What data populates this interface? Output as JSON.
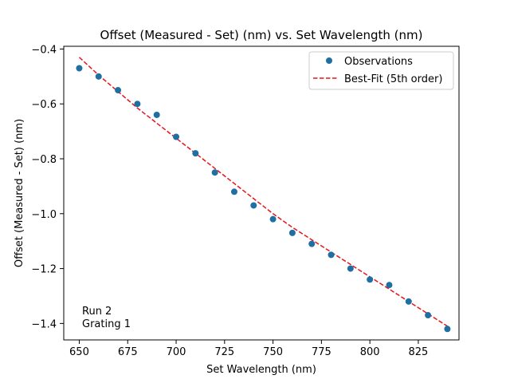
{
  "chart_data": {
    "type": "scatter",
    "title": "Offset (Measured - Set) (nm) vs. Set Wavelength (nm)",
    "xlabel": "Set Wavelength (nm)",
    "ylabel": "Offset (Measured - Set) (nm)",
    "xlim": [
      642,
      846
    ],
    "ylim": [
      -1.46,
      -0.39
    ],
    "grid": false,
    "legend_placement": "top-right",
    "x_ticks": [
      650,
      675,
      700,
      725,
      750,
      775,
      800,
      825
    ],
    "x_tick_labels": [
      "650",
      "675",
      "700",
      "725",
      "750",
      "775",
      "800",
      "825"
    ],
    "y_ticks": [
      -0.4,
      -0.6,
      -0.8,
      -1.0,
      -1.2,
      -1.4
    ],
    "y_tick_labels": [
      "−0.4",
      "−0.6",
      "−0.8",
      "−1.0",
      "−1.2",
      "−1.4"
    ],
    "series": [
      {
        "name": "Observations",
        "style": "markers",
        "color": "#1f6fa3",
        "x": [
          650,
          660,
          670,
          680,
          690,
          700,
          710,
          720,
          730,
          740,
          750,
          760,
          770,
          780,
          790,
          800,
          810,
          820,
          830,
          840
        ],
        "y": [
          -0.47,
          -0.5,
          -0.55,
          -0.6,
          -0.64,
          -0.72,
          -0.78,
          -0.85,
          -0.92,
          -0.97,
          -1.02,
          -1.07,
          -1.11,
          -1.15,
          -1.2,
          -1.24,
          -1.26,
          -1.32,
          -1.37,
          -1.42
        ]
      },
      {
        "name": "Best-Fit (5th order)",
        "style": "dashed-line",
        "color": "#e8141c",
        "x": [
          650,
          660,
          670,
          680,
          690,
          700,
          710,
          720,
          730,
          740,
          750,
          760,
          770,
          780,
          790,
          800,
          810,
          820,
          830,
          840
        ],
        "y": [
          -0.43,
          -0.495,
          -0.555,
          -0.615,
          -0.67,
          -0.725,
          -0.78,
          -0.835,
          -0.89,
          -0.945,
          -1.0,
          -1.05,
          -1.095,
          -1.14,
          -1.185,
          -1.23,
          -1.275,
          -1.32,
          -1.365,
          -1.41
        ]
      }
    ],
    "annotations": [
      "Run 2",
      "Grating 1"
    ]
  }
}
